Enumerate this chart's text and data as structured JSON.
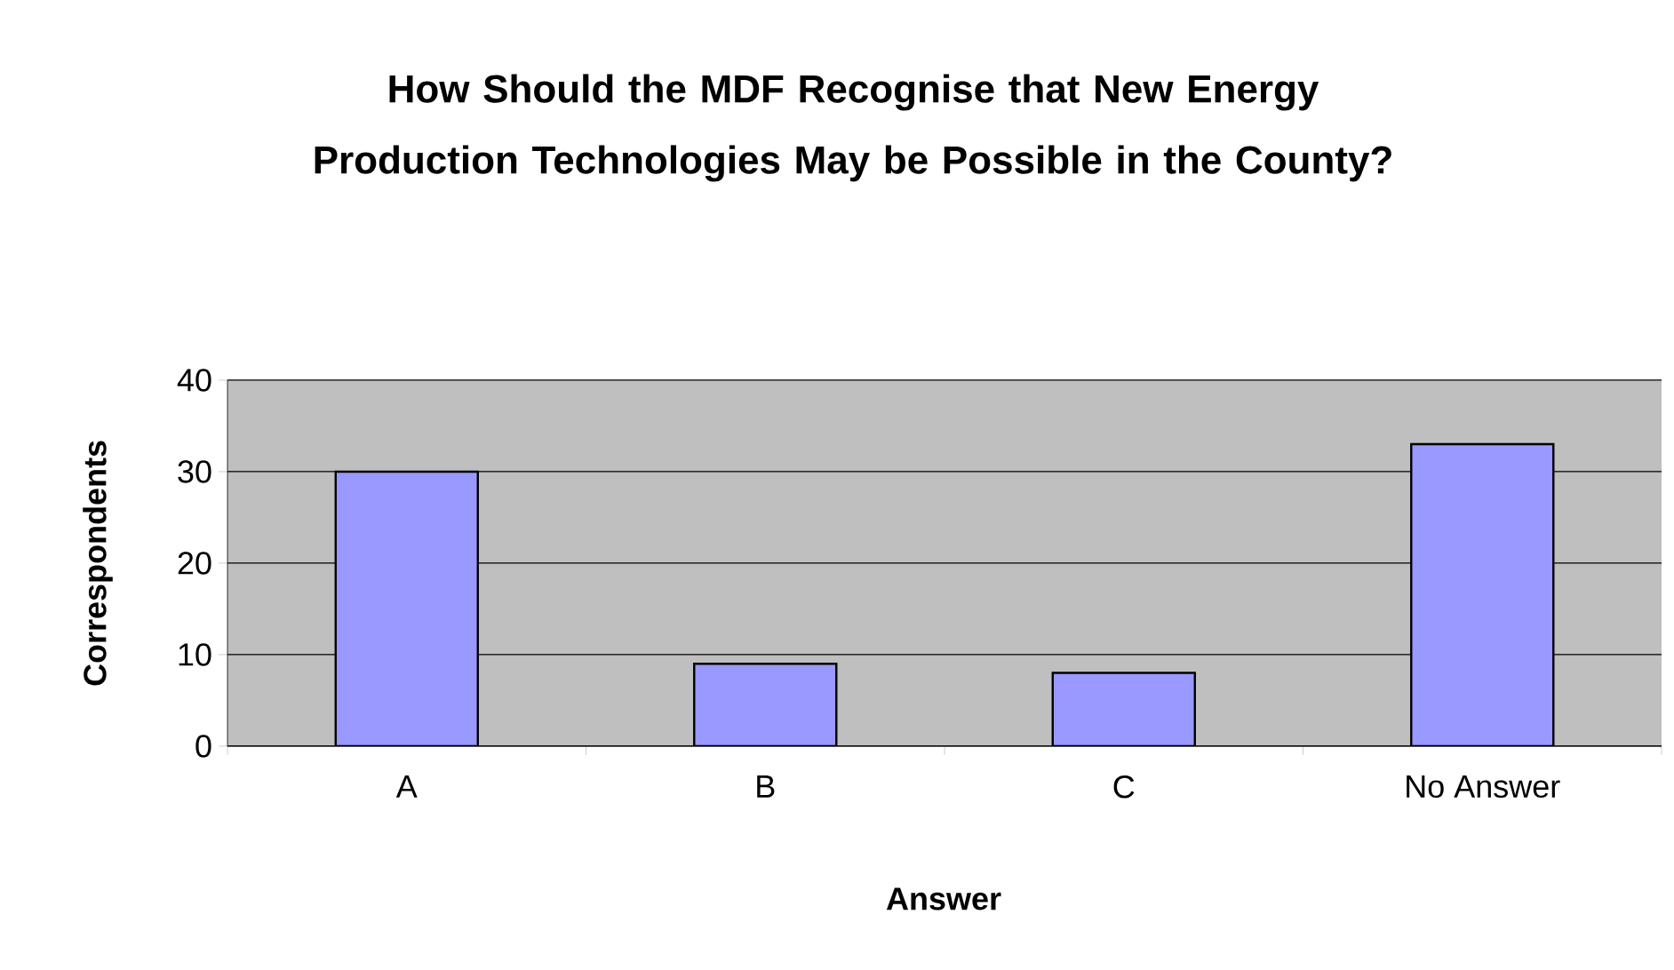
{
  "chart_data": {
    "type": "bar",
    "title": "How Should the MDF Recognise that New Energy Production Technologies May be Possible in the County?",
    "xlabel": "Answer",
    "ylabel": "Correspondents",
    "categories": [
      "A",
      "B",
      "C",
      "No Answer"
    ],
    "values": [
      30,
      9,
      8,
      33
    ],
    "color": "#9999ff",
    "ylim": [
      0,
      40
    ],
    "yticks": [
      0,
      10,
      20,
      30,
      40
    ],
    "grid": "y"
  }
}
